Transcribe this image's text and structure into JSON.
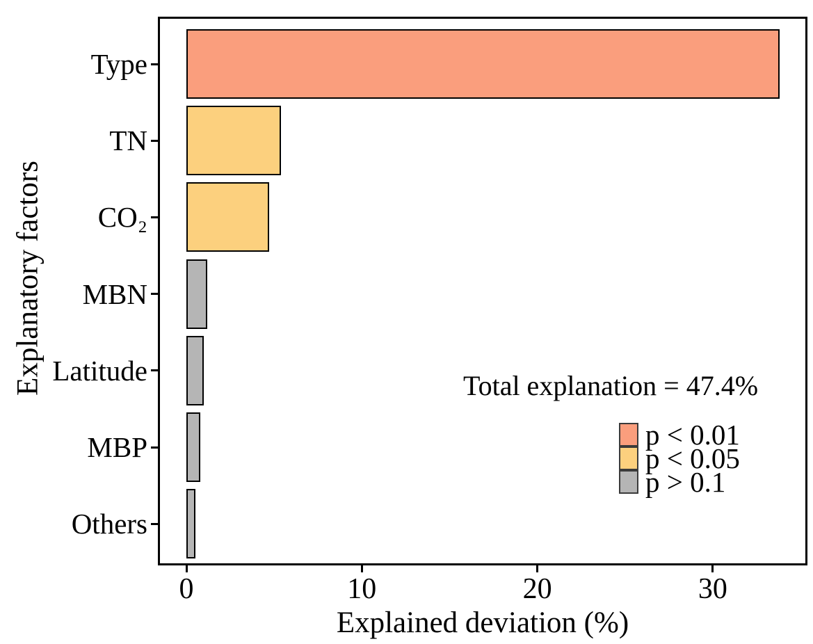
{
  "figure": {
    "x_axis_label": "Explained deviation (%)",
    "y_axis_label": "Explanatory factors",
    "annotation": "Total explanation = 47.4%",
    "background_color": "#ffffff",
    "axis_color": "#000000"
  },
  "chart_data": {
    "type": "bar",
    "orientation": "horizontal",
    "title": "",
    "xlabel": "Explained deviation (%)",
    "ylabel": "Explanatory factors",
    "categories": [
      "Type",
      "TN",
      "CO₂",
      "MBN",
      "Latitude",
      "MBP",
      "Others"
    ],
    "values": [
      33.8,
      5.4,
      4.7,
      1.2,
      1.0,
      0.8,
      0.5
    ],
    "significance": [
      "p < 0.01",
      "p < 0.05",
      "p < 0.05",
      "p > 0.1",
      "p > 0.1",
      "p > 0.1",
      "p > 0.1"
    ],
    "total_explanation_pct": 47.4,
    "x_ticks": [
      0,
      10,
      20,
      30
    ],
    "xlim": [
      -1.6,
      35.4
    ],
    "grid": false,
    "legend_position": "lower right inside",
    "legend": [
      {
        "label": "p < 0.01",
        "color": "#FA9E7D"
      },
      {
        "label": "p < 0.05",
        "color": "#FCD07E"
      },
      {
        "label": "p > 0.1",
        "color": "#B5B5B5"
      }
    ],
    "bar_edge_color": "#000000"
  }
}
